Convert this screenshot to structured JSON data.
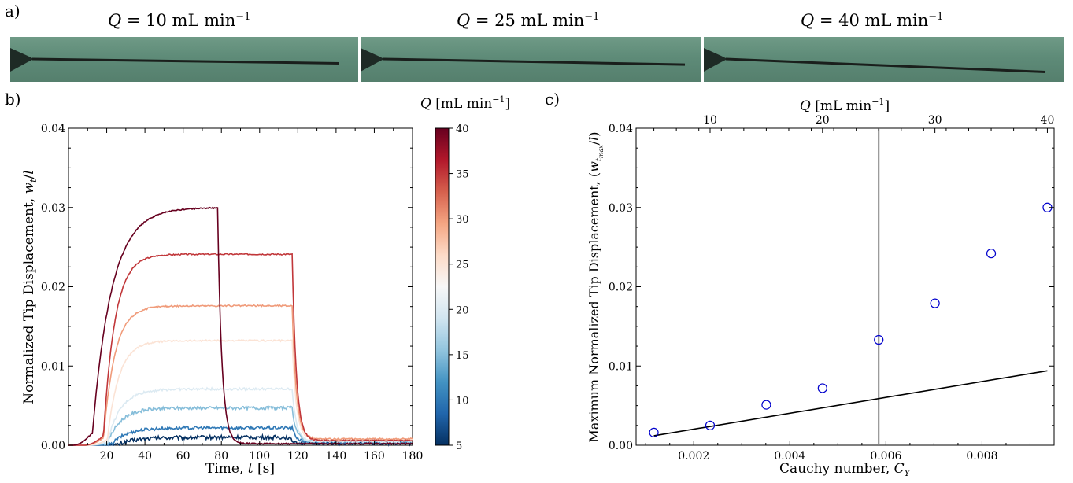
{
  "panel_labels": {
    "a": "a)",
    "b": "b)",
    "c": "c)"
  },
  "photos": [
    {
      "title_prefix": "Q",
      "title_rest": " = 10 mL min",
      "title_exp": "−1",
      "deflection": 0.01
    },
    {
      "title_prefix": "Q",
      "title_rest": " = 25 mL min",
      "title_exp": "−1",
      "deflection": 0.013
    },
    {
      "title_prefix": "Q",
      "title_rest": " = 40 mL min",
      "title_exp": "−1",
      "deflection": 0.03
    }
  ],
  "colors": {
    "marker": "#0000cc",
    "line": "#000000",
    "vline": "#808080",
    "cmap": [
      "#053061",
      "#2166ac",
      "#4393c3",
      "#92c5de",
      "#d1e5f0",
      "#f7f7f7",
      "#fddbc7",
      "#f4a582",
      "#d6604d",
      "#b2182b",
      "#67001f"
    ]
  },
  "chart_data": [
    {
      "id": "b",
      "type": "line",
      "xlabel": "Time, t [s]",
      "ylabel": "Normalized Tip Displacement, w_t/l",
      "xlim": [
        0,
        180
      ],
      "ylim": [
        0,
        0.04
      ],
      "xticks": [
        "20",
        "40",
        "60",
        "80",
        "100",
        "120",
        "140",
        "160",
        "180"
      ],
      "xtick_values": [
        20,
        40,
        60,
        80,
        100,
        120,
        140,
        160,
        180
      ],
      "yticks": [
        "0.00",
        "0.01",
        "0.02",
        "0.03",
        "0.04"
      ],
      "ytick_values": [
        0,
        0.01,
        0.02,
        0.03,
        0.04
      ],
      "colorbar": {
        "label": "Q [mL min⁻¹]",
        "range": [
          5,
          40
        ],
        "ticks": [
          "5",
          "10",
          "15",
          "20",
          "25",
          "30",
          "35",
          "40"
        ],
        "tick_values": [
          5,
          10,
          15,
          20,
          25,
          30,
          35,
          40
        ]
      },
      "series": [
        {
          "q": 5,
          "plateau": 0.001,
          "t_on": 25,
          "tau": 9,
          "t_off": 115,
          "base": 0.0003,
          "noise": 0.00025
        },
        {
          "q": 10,
          "plateau": 0.0022,
          "t_on": 22,
          "tau": 8,
          "t_off": 117,
          "base": 0.0004,
          "noise": 0.0002
        },
        {
          "q": 15,
          "plateau": 0.0047,
          "t_on": 20,
          "tau": 7,
          "t_off": 117,
          "base": 0.0005,
          "noise": 0.0002
        },
        {
          "q": 20,
          "plateau": 0.0071,
          "t_on": 20,
          "tau": 7,
          "t_off": 117,
          "base": 0.0005,
          "noise": 0.00015
        },
        {
          "q": 25,
          "plateau": 0.0132,
          "t_on": 20,
          "tau": 6,
          "t_off": 117,
          "base": 0.0007,
          "noise": 0.0001
        },
        {
          "q": 30,
          "plateau": 0.0176,
          "t_on": 18,
          "tau": 6,
          "t_off": 117,
          "base": 0.0008,
          "noise": 0.0001
        },
        {
          "q": 35,
          "plateau": 0.0241,
          "t_on": 18,
          "tau": 6,
          "t_off": 117,
          "base": 0.0006,
          "noise": 8e-05
        },
        {
          "q": 40,
          "plateau": 0.03,
          "t_on": 12,
          "tau": 10,
          "t_off": 78,
          "base": 0.0002,
          "noise": 8e-05
        }
      ]
    },
    {
      "id": "c",
      "type": "scatter",
      "xlabel": "Cauchy number, C_Y",
      "ylabel": "Maximum Normalized Tip Displacement, (w_tmax/l)",
      "top_xlabel": "Q [mL min⁻¹]",
      "xlim": [
        0.0008,
        0.0095
      ],
      "ylim": [
        0,
        0.04
      ],
      "xticks": [
        "0.002",
        "0.004",
        "0.006",
        "0.008"
      ],
      "xtick_values": [
        0.002,
        0.004,
        0.006,
        0.008
      ],
      "yticks": [
        "0.00",
        "0.01",
        "0.02",
        "0.03",
        "0.04"
      ],
      "ytick_values": [
        0,
        0.01,
        0.02,
        0.03,
        0.04
      ],
      "top_xticks": [
        "10",
        "20",
        "30",
        "40"
      ],
      "top_xtick_values": [
        10,
        20,
        30,
        40
      ],
      "q_to_cy": 0.000234,
      "points": [
        {
          "x": 0.00117,
          "y": 0.0016
        },
        {
          "x": 0.00234,
          "y": 0.0025
        },
        {
          "x": 0.00351,
          "y": 0.0051
        },
        {
          "x": 0.00468,
          "y": 0.0072
        },
        {
          "x": 0.00585,
          "y": 0.0133
        },
        {
          "x": 0.00702,
          "y": 0.0179
        },
        {
          "x": 0.00819,
          "y": 0.0242
        },
        {
          "x": 0.00936,
          "y": 0.03
        }
      ],
      "model_line": [
        {
          "x": 0.00117,
          "y": 0.0012
        },
        {
          "x": 0.00936,
          "y": 0.0094
        }
      ],
      "vline_x": 0.00585
    }
  ]
}
